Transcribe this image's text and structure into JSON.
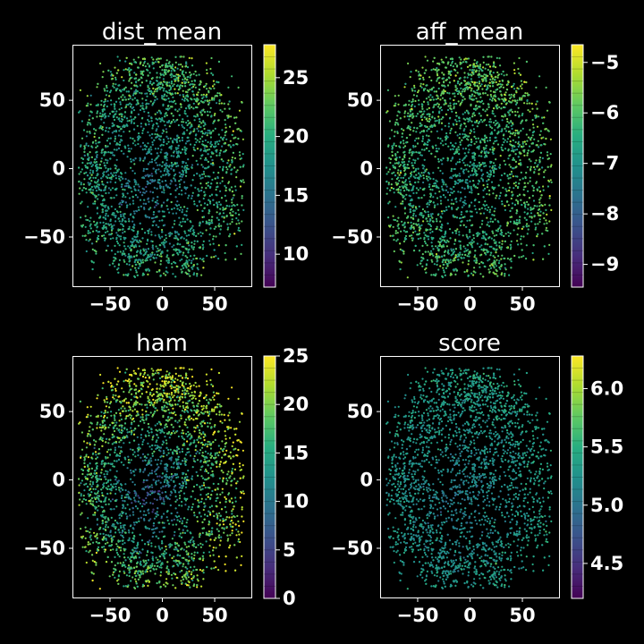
{
  "chart_data": [
    {
      "type": "scatter",
      "title": "dist_mean",
      "xlabel": "",
      "ylabel": "",
      "xlim": [
        -85,
        85
      ],
      "ylim": [
        -86,
        90
      ],
      "xticks": [
        -50,
        0,
        50
      ],
      "yticks": [
        -50,
        0,
        50
      ],
      "xtick_labels": [
        "−50",
        "0",
        "50"
      ],
      "ytick_labels": [
        "−50",
        "0",
        "50"
      ],
      "colorbar": {
        "min": 7.2,
        "max": 27.8,
        "ticks": [
          10,
          15,
          20,
          25
        ],
        "tick_labels": [
          "10",
          "15",
          "20",
          "25"
        ],
        "colormap": "viridis"
      },
      "center_value": 15,
      "edge_value": 22,
      "noise": 2,
      "points_summary": "dense t-SNE embedding of ~4000 points forming a lobed blob centred near (-10,-10)"
    },
    {
      "type": "scatter",
      "title": "aff_mean",
      "xlabel": "",
      "ylabel": "",
      "xlim": [
        -85,
        85
      ],
      "ylim": [
        -86,
        90
      ],
      "xticks": [
        -50,
        0,
        50
      ],
      "yticks": [
        -50,
        0,
        50
      ],
      "xtick_labels": [
        "−50",
        "0",
        "50"
      ],
      "ytick_labels": [
        "−50",
        "0",
        "50"
      ],
      "colorbar": {
        "min": -9.45,
        "max": -4.65,
        "ticks": [
          -9,
          -8,
          -7,
          -6,
          -5
        ],
        "tick_labels": [
          "−9",
          "−8",
          "−7",
          "−6",
          "−5"
        ],
        "colormap": "viridis"
      },
      "center_value": -7.0,
      "edge_value": -5.8,
      "noise": 0.4,
      "points_summary": "same embedding coloured by mean affinity"
    },
    {
      "type": "scatter",
      "title": "ham",
      "xlabel": "",
      "ylabel": "",
      "xlim": [
        -85,
        85
      ],
      "ylim": [
        -86,
        90
      ],
      "xticks": [
        -50,
        0,
        50
      ],
      "yticks": [
        -50,
        0,
        50
      ],
      "xtick_labels": [
        "−50",
        "0",
        "50"
      ],
      "ytick_labels": [
        "−50",
        "0",
        "50"
      ],
      "colorbar": {
        "min": 0,
        "max": 25,
        "ticks": [
          0,
          5,
          10,
          15,
          20,
          25
        ],
        "tick_labels": [
          "0",
          "5",
          "10",
          "15",
          "20",
          "25"
        ],
        "colormap": "viridis"
      },
      "center_value": 6,
      "edge_value": 23,
      "noise": 3,
      "points_summary": "same embedding coloured by Hamming distance; low in centre, high on the periphery"
    },
    {
      "type": "scatter",
      "title": "score",
      "xlabel": "",
      "ylabel": "",
      "xlim": [
        -85,
        85
      ],
      "ylim": [
        -86,
        90
      ],
      "xticks": [
        -50,
        0,
        50
      ],
      "yticks": [
        -50,
        0,
        50
      ],
      "xtick_labels": [
        "−50",
        "0",
        "50"
      ],
      "ytick_labels": [
        "−50",
        "0",
        "50"
      ],
      "colorbar": {
        "min": 4.2,
        "max": 6.28,
        "ticks": [
          4.5,
          5.0,
          5.5,
          6.0
        ],
        "tick_labels": [
          "4.5",
          "5.0",
          "5.5",
          "6.0"
        ],
        "colormap": "viridis"
      },
      "center_value": 5.05,
      "edge_value": 5.4,
      "noise": 0.12,
      "points_summary": "same embedding coloured by score"
    }
  ],
  "colors": {
    "background": "#000000",
    "axes": "#ffffff",
    "text": "#ffffff"
  }
}
